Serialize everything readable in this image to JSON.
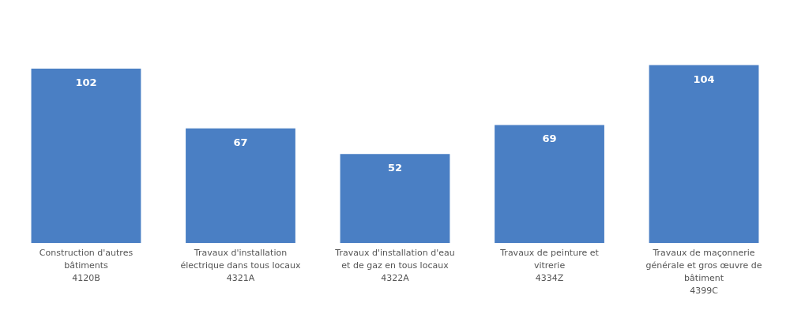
{
  "chart_data": {
    "type": "bar",
    "categories": [
      "Construction d'autres bâtiments\n4120B",
      "Travaux d'installation électrique dans tous locaux\n4321A",
      "Travaux d'installation d'eau et de gaz en tous locaux\n4322A",
      "Travaux de peinture et vitrerie\n4334Z",
      "Travaux de maçonnerie générale et gros œuvre de bâtiment\n4399C"
    ],
    "values": [
      102,
      67,
      52,
      69,
      104
    ],
    "color": "#4a7fc4",
    "data_labels": true
  }
}
